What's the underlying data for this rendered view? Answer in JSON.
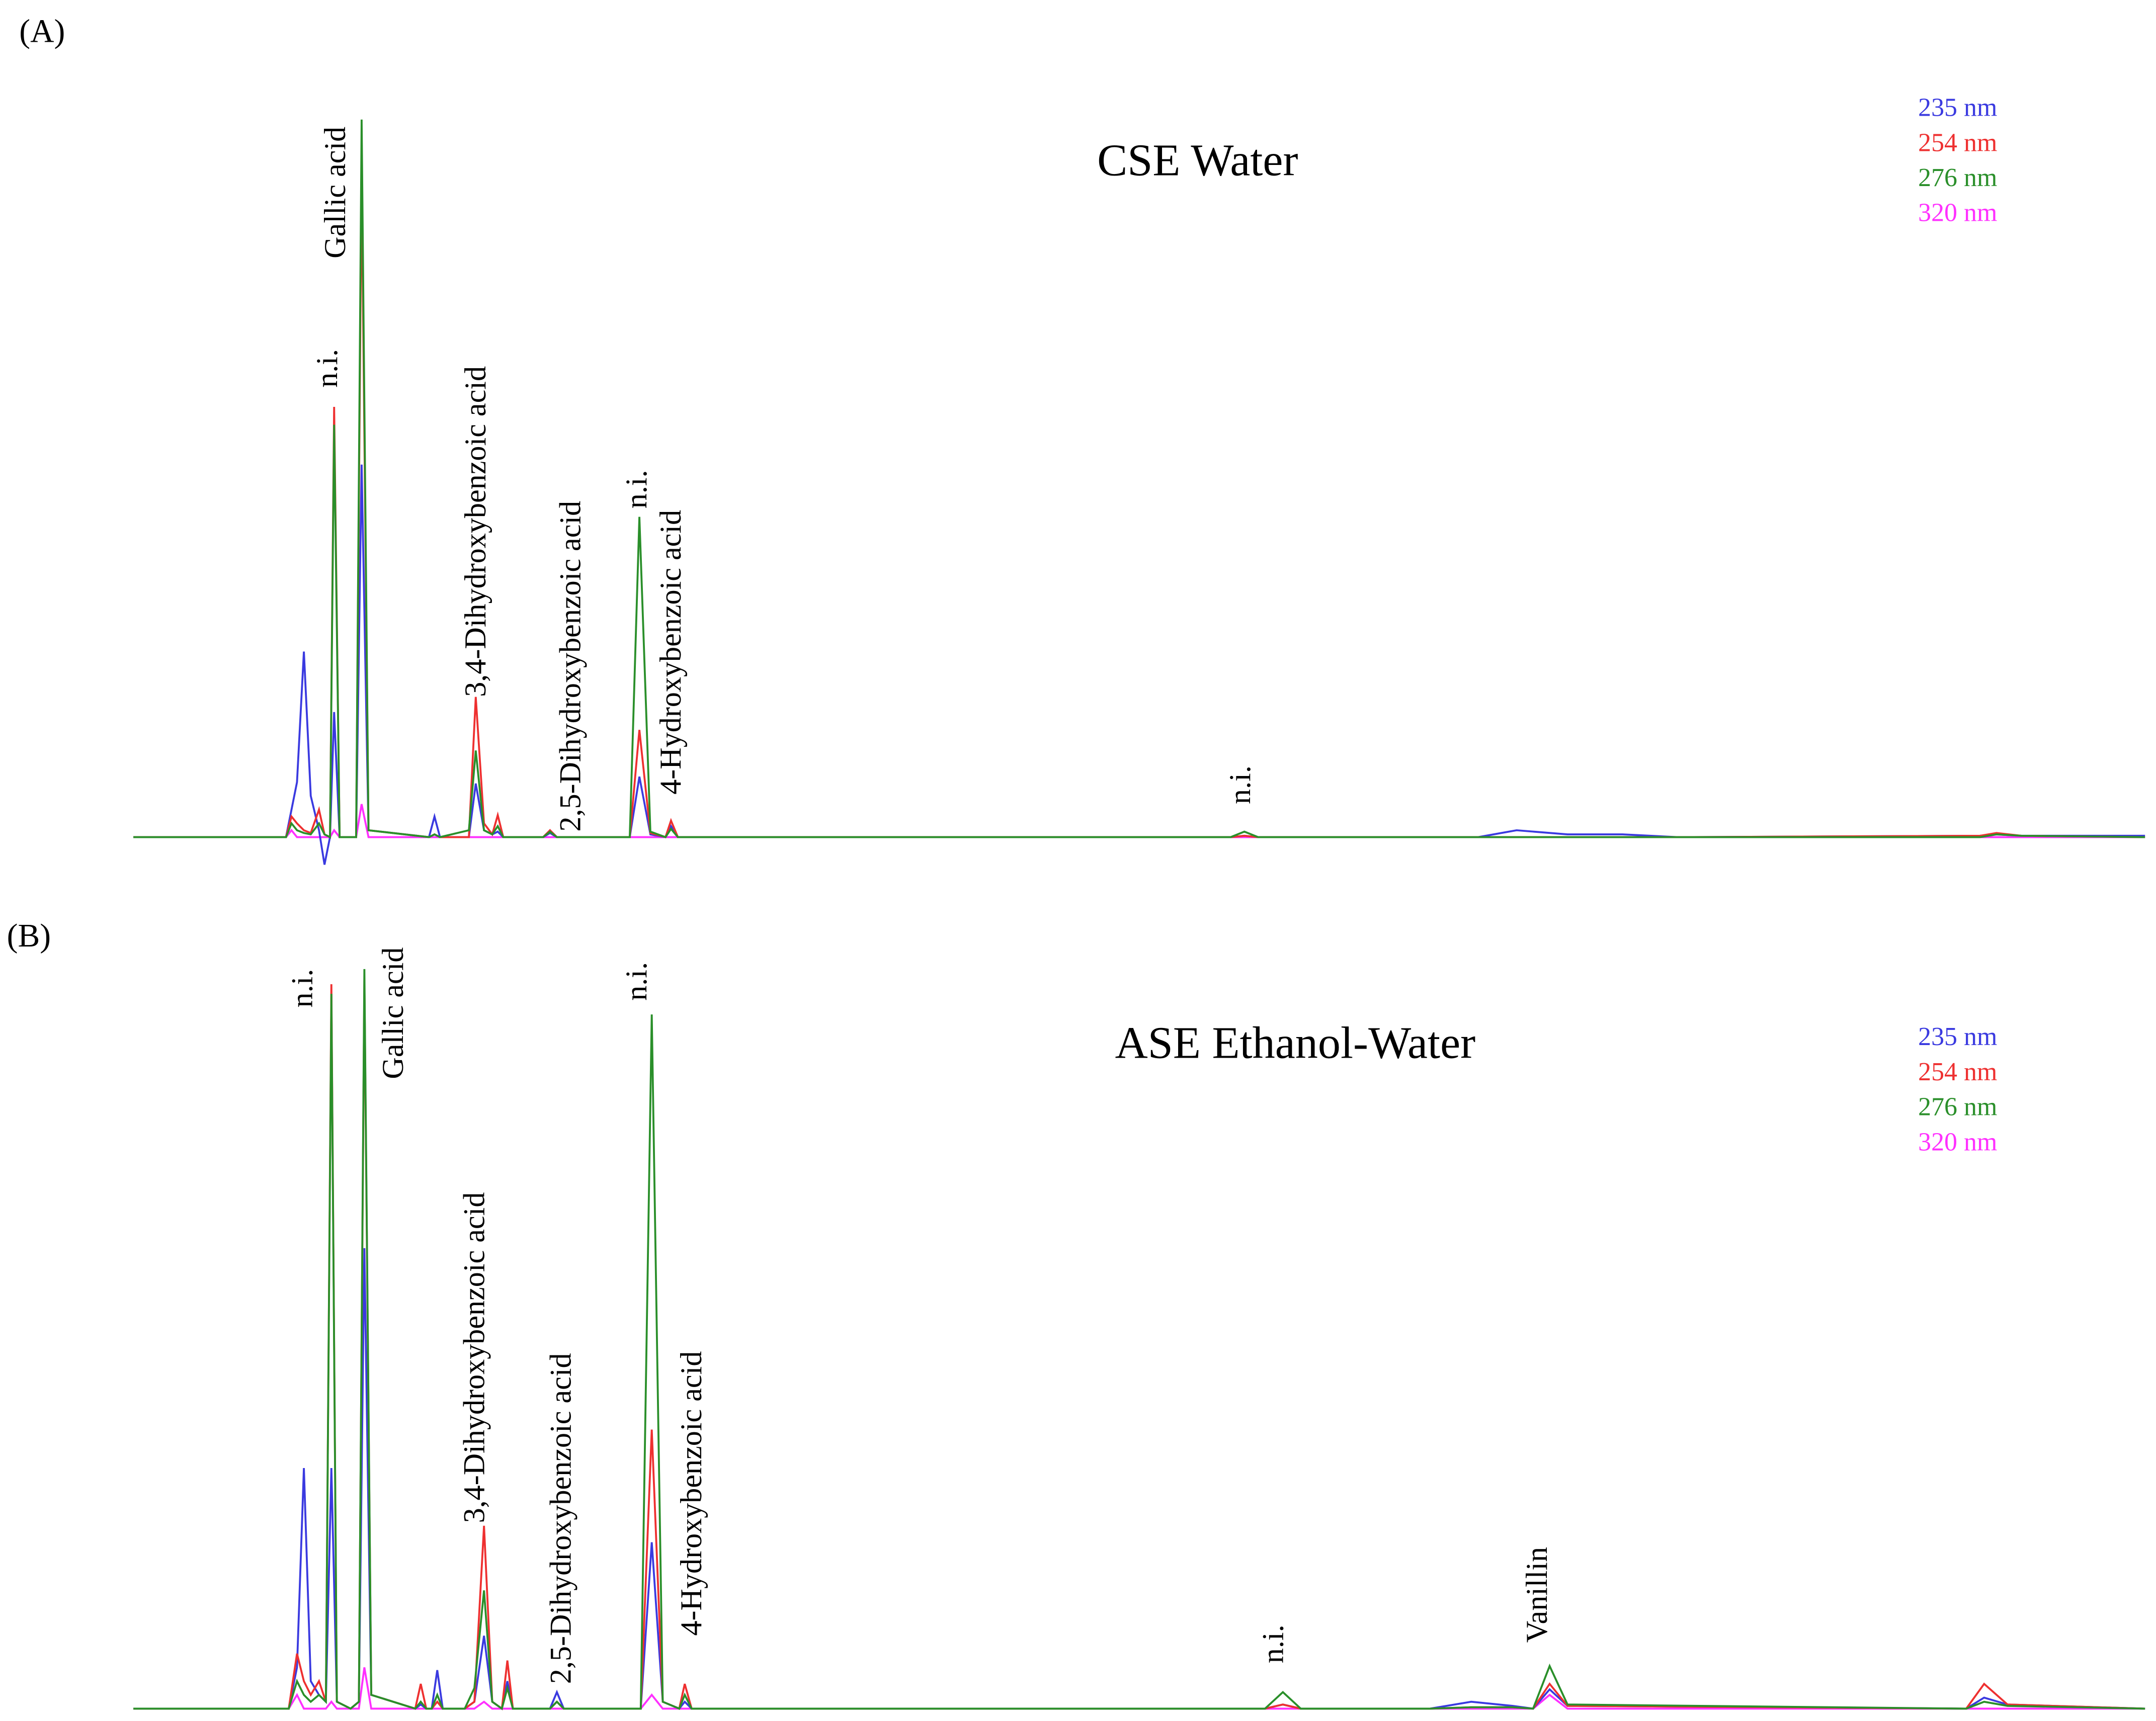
{
  "chart_data": [
    {
      "type": "line",
      "panel_label": "(A)",
      "title": "CSE Water",
      "xlim": [
        0,
        1463
      ],
      "ylim": [
        0,
        530
      ],
      "x": [
        0,
        111,
        115,
        119,
        124,
        129,
        135,
        139,
        143,
        146,
        150,
        162,
        166,
        171,
        215,
        219,
        223,
        244,
        249,
        255,
        261,
        265,
        269,
        298,
        303,
        308,
        361,
        368,
        376,
        387,
        391,
        396,
        798,
        808,
        818,
        978,
        1006,
        1043,
        1083,
        1123,
        1343,
        1355,
        1373,
        1463
      ],
      "series": [
        {
          "name": "235 nm",
          "color": "#3a3ae0",
          "values": [
            0,
            0,
            20,
            40,
            135,
            30,
            5,
            -20,
            0,
            91,
            0,
            0,
            271,
            5,
            0,
            15,
            0,
            0,
            39,
            5,
            2,
            4,
            0,
            0,
            3,
            0,
            0,
            44,
            2,
            0,
            8,
            0,
            0,
            1,
            0,
            0,
            5,
            2,
            2,
            0,
            1,
            2,
            1,
            1
          ]
        },
        {
          "name": "254 nm",
          "color": "#ee3030",
          "values": [
            0,
            0,
            15,
            10,
            5,
            3,
            20,
            2,
            0,
            313,
            0,
            0,
            484,
            5,
            0,
            2,
            0,
            0,
            102,
            10,
            2,
            16,
            0,
            0,
            5,
            0,
            0,
            78,
            3,
            0,
            12,
            0,
            0,
            1,
            0,
            0,
            0,
            0,
            0,
            0,
            1,
            3,
            1,
            0
          ]
        },
        {
          "name": "276 nm",
          "color": "#2a8f2a",
          "values": [
            0,
            0,
            10,
            5,
            3,
            2,
            10,
            2,
            0,
            300,
            0,
            0,
            522,
            5,
            0,
            2,
            0,
            5,
            63,
            5,
            2,
            8,
            0,
            0,
            4,
            0,
            0,
            233,
            4,
            0,
            6,
            0,
            0,
            4,
            0,
            0,
            0,
            0,
            0,
            0,
            0,
            2,
            1,
            0
          ]
        },
        {
          "name": "320 nm",
          "color": "#ff30ff",
          "values": [
            0,
            0,
            5,
            0,
            0,
            0,
            0,
            0,
            0,
            5,
            0,
            0,
            24,
            0,
            0,
            0,
            0,
            0,
            0,
            0,
            0,
            0,
            0,
            0,
            0,
            0,
            0,
            0,
            0,
            0,
            0,
            0,
            0,
            0,
            0,
            0,
            0,
            0,
            0,
            0,
            0,
            0,
            0,
            0
          ]
        }
      ],
      "annotations": [
        "n.i.",
        "Gallic acid",
        "3,4-Dihydroxybenzoic acid",
        "2,5-Dihydroxybenzoic acid",
        "n.i.",
        "4-Hydroxybenzoic acid",
        "n.i."
      ]
    },
    {
      "type": "line",
      "panel_label": "(B)",
      "title": "ASE Ethanol-Water",
      "xlim": [
        0,
        1463
      ],
      "ylim": [
        0,
        540
      ],
      "x": [
        0,
        113,
        119,
        124,
        129,
        135,
        140,
        144,
        148,
        158,
        164,
        168,
        173,
        205,
        209,
        213,
        217,
        221,
        225,
        241,
        248,
        255,
        261,
        268,
        272,
        276,
        303,
        308,
        313,
        369,
        377,
        385,
        397,
        401,
        406,
        823,
        836,
        849,
        943,
        973,
        1003,
        1018,
        1030,
        1043,
        1333,
        1346,
        1363,
        1463
      ],
      "series": [
        {
          "name": "235 nm",
          "color": "#3a3ae0",
          "values": [
            0,
            0,
            30,
            175,
            20,
            10,
            5,
            175,
            5,
            0,
            5,
            335,
            10,
            0,
            3,
            0,
            0,
            28,
            0,
            0,
            5,
            53,
            5,
            0,
            20,
            0,
            0,
            12,
            0,
            0,
            121,
            5,
            0,
            5,
            0,
            0,
            3,
            0,
            0,
            5,
            2,
            0,
            14,
            2,
            0,
            8,
            3,
            0
          ]
        },
        {
          "name": "254 nm",
          "color": "#ee3030",
          "values": [
            0,
            0,
            40,
            20,
            10,
            20,
            5,
            527,
            5,
            0,
            5,
            530,
            10,
            0,
            18,
            0,
            0,
            5,
            0,
            0,
            5,
            133,
            5,
            0,
            35,
            0,
            0,
            5,
            0,
            0,
            203,
            5,
            0,
            18,
            0,
            0,
            3,
            0,
            0,
            1,
            1,
            0,
            18,
            2,
            0,
            18,
            3,
            0
          ]
        },
        {
          "name": "276 nm",
          "color": "#2a8f2a",
          "values": [
            0,
            0,
            20,
            10,
            5,
            10,
            5,
            520,
            5,
            0,
            5,
            538,
            10,
            0,
            5,
            0,
            0,
            10,
            0,
            0,
            15,
            86,
            5,
            0,
            15,
            0,
            0,
            5,
            0,
            0,
            505,
            5,
            0,
            10,
            0,
            0,
            12,
            0,
            0,
            1,
            1,
            0,
            31,
            3,
            0,
            5,
            2,
            0
          ]
        },
        {
          "name": "320 nm",
          "color": "#ff30ff",
          "values": [
            0,
            0,
            10,
            0,
            0,
            0,
            0,
            5,
            0,
            0,
            0,
            30,
            0,
            0,
            0,
            0,
            0,
            0,
            0,
            0,
            0,
            5,
            0,
            0,
            0,
            0,
            0,
            0,
            0,
            0,
            10,
            0,
            0,
            0,
            0,
            0,
            0,
            0,
            0,
            0,
            0,
            0,
            10,
            0,
            0,
            0,
            0,
            0
          ]
        }
      ],
      "annotations": [
        "n.i.",
        "Gallic acid",
        "3,4-Dihydroxybenzoic acid",
        "2,5-Dihydroxybenzoic acid",
        "n.i.",
        "4-Hydroxybenzoic acid",
        "n.i.",
        "Vanillin"
      ]
    }
  ]
}
